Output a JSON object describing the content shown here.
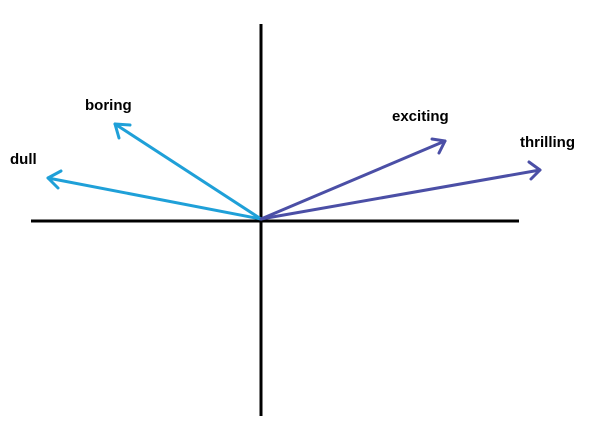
{
  "diagram": {
    "colors": {
      "axis": "#000000",
      "negative_vectors": "#1fa0d8",
      "positive_vectors": "#4b4fa6",
      "background": "#ffffff"
    },
    "vectors": [
      {
        "id": "dull",
        "label": "dull",
        "polarity": "negative"
      },
      {
        "id": "boring",
        "label": "boring",
        "polarity": "negative"
      },
      {
        "id": "exciting",
        "label": "exciting",
        "polarity": "positive"
      },
      {
        "id": "thrilling",
        "label": "thrilling",
        "polarity": "positive"
      }
    ]
  }
}
